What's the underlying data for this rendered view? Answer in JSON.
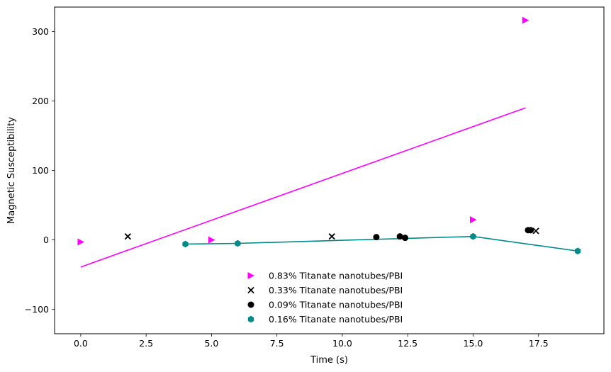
{
  "chart_data": {
    "type": "scatter",
    "xlabel": "Time (s)",
    "ylabel": "Magnetic Susceptibility",
    "xlim": [
      -1.0,
      20.0
    ],
    "ylim": [
      -135,
      335
    ],
    "x_ticks": [
      0.0,
      2.5,
      5.0,
      7.5,
      10.0,
      12.5,
      15.0,
      17.5
    ],
    "x_tick_labels": [
      "0.0",
      "2.5",
      "5.0",
      "7.5",
      "10.0",
      "12.5",
      "15.0",
      "17.5"
    ],
    "y_ticks": [
      -100,
      0,
      100,
      200,
      300
    ],
    "y_tick_labels": [
      "−100",
      "0",
      "100",
      "200",
      "300"
    ],
    "grid": false,
    "legend_position": "lower-center",
    "series": [
      {
        "name": "0.83% Titanate nanotubes/PBI",
        "marker": "triangle-right",
        "color": "#ff00ff",
        "points": [
          [
            0.0,
            -3
          ],
          [
            5.0,
            0
          ],
          [
            15.0,
            29
          ],
          [
            17.0,
            316
          ]
        ],
        "fit_line": [
          [
            0.0,
            -39
          ],
          [
            17.0,
            190
          ]
        ]
      },
      {
        "name": "0.33% Titanate nanotubes/PBI",
        "marker": "x",
        "color": "#000000",
        "points": [
          [
            1.8,
            5
          ],
          [
            9.6,
            5
          ],
          [
            17.4,
            13
          ]
        ]
      },
      {
        "name": "0.09% Titanate nanotubes/PBI",
        "marker": "circle",
        "color": "#000000",
        "points": [
          [
            11.3,
            4
          ],
          [
            12.2,
            5
          ],
          [
            12.4,
            3
          ],
          [
            17.1,
            14
          ],
          [
            17.2,
            14
          ]
        ]
      },
      {
        "name": "0.16% Titanate nanotubes/PBI",
        "marker": "hexagon",
        "color": "#008b8b",
        "points": [
          [
            4.0,
            -6
          ],
          [
            6.0,
            -5
          ],
          [
            15.0,
            5
          ],
          [
            19.0,
            -16
          ]
        ],
        "connect": true
      }
    ]
  }
}
